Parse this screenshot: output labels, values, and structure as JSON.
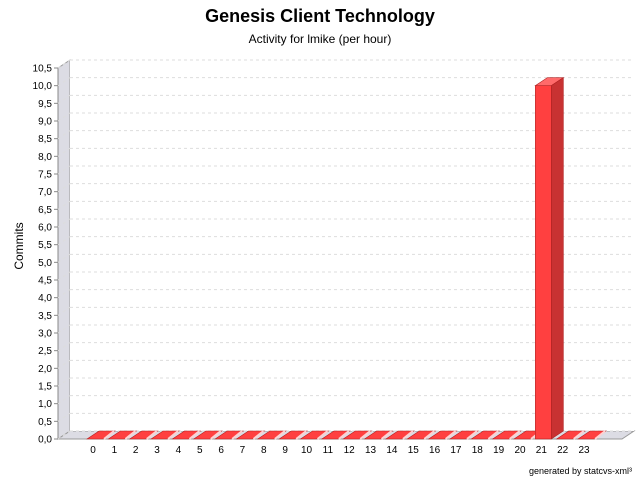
{
  "chart_data": {
    "type": "bar",
    "title": "Genesis Client Technology",
    "subtitle": "Activity for lmike (per hour)",
    "xlabel": "",
    "ylabel": "Commits",
    "categories": [
      "0",
      "1",
      "2",
      "3",
      "4",
      "5",
      "6",
      "7",
      "8",
      "9",
      "10",
      "11",
      "12",
      "13",
      "14",
      "15",
      "16",
      "17",
      "18",
      "19",
      "20",
      "21",
      "22",
      "23"
    ],
    "series": [
      {
        "values": [
          0,
          0,
          0,
          0,
          0,
          0,
          0,
          0,
          0,
          0,
          0,
          0,
          0,
          0,
          0,
          0,
          0,
          0,
          0,
          0,
          0,
          10,
          0,
          0
        ]
      }
    ],
    "ylim": [
      0,
      10.5
    ],
    "yticks": [
      "0,0",
      "0,5",
      "1,0",
      "1,5",
      "2,0",
      "2,5",
      "3,0",
      "3,5",
      "4,0",
      "4,5",
      "5,0",
      "5,5",
      "6,0",
      "6,5",
      "7,0",
      "7,5",
      "8,0",
      "8,5",
      "9,0",
      "9,5",
      "10,0",
      "10,5"
    ],
    "grid": true,
    "bar_color": "#ff4040",
    "footer": "generated by statcvs-xml³"
  }
}
